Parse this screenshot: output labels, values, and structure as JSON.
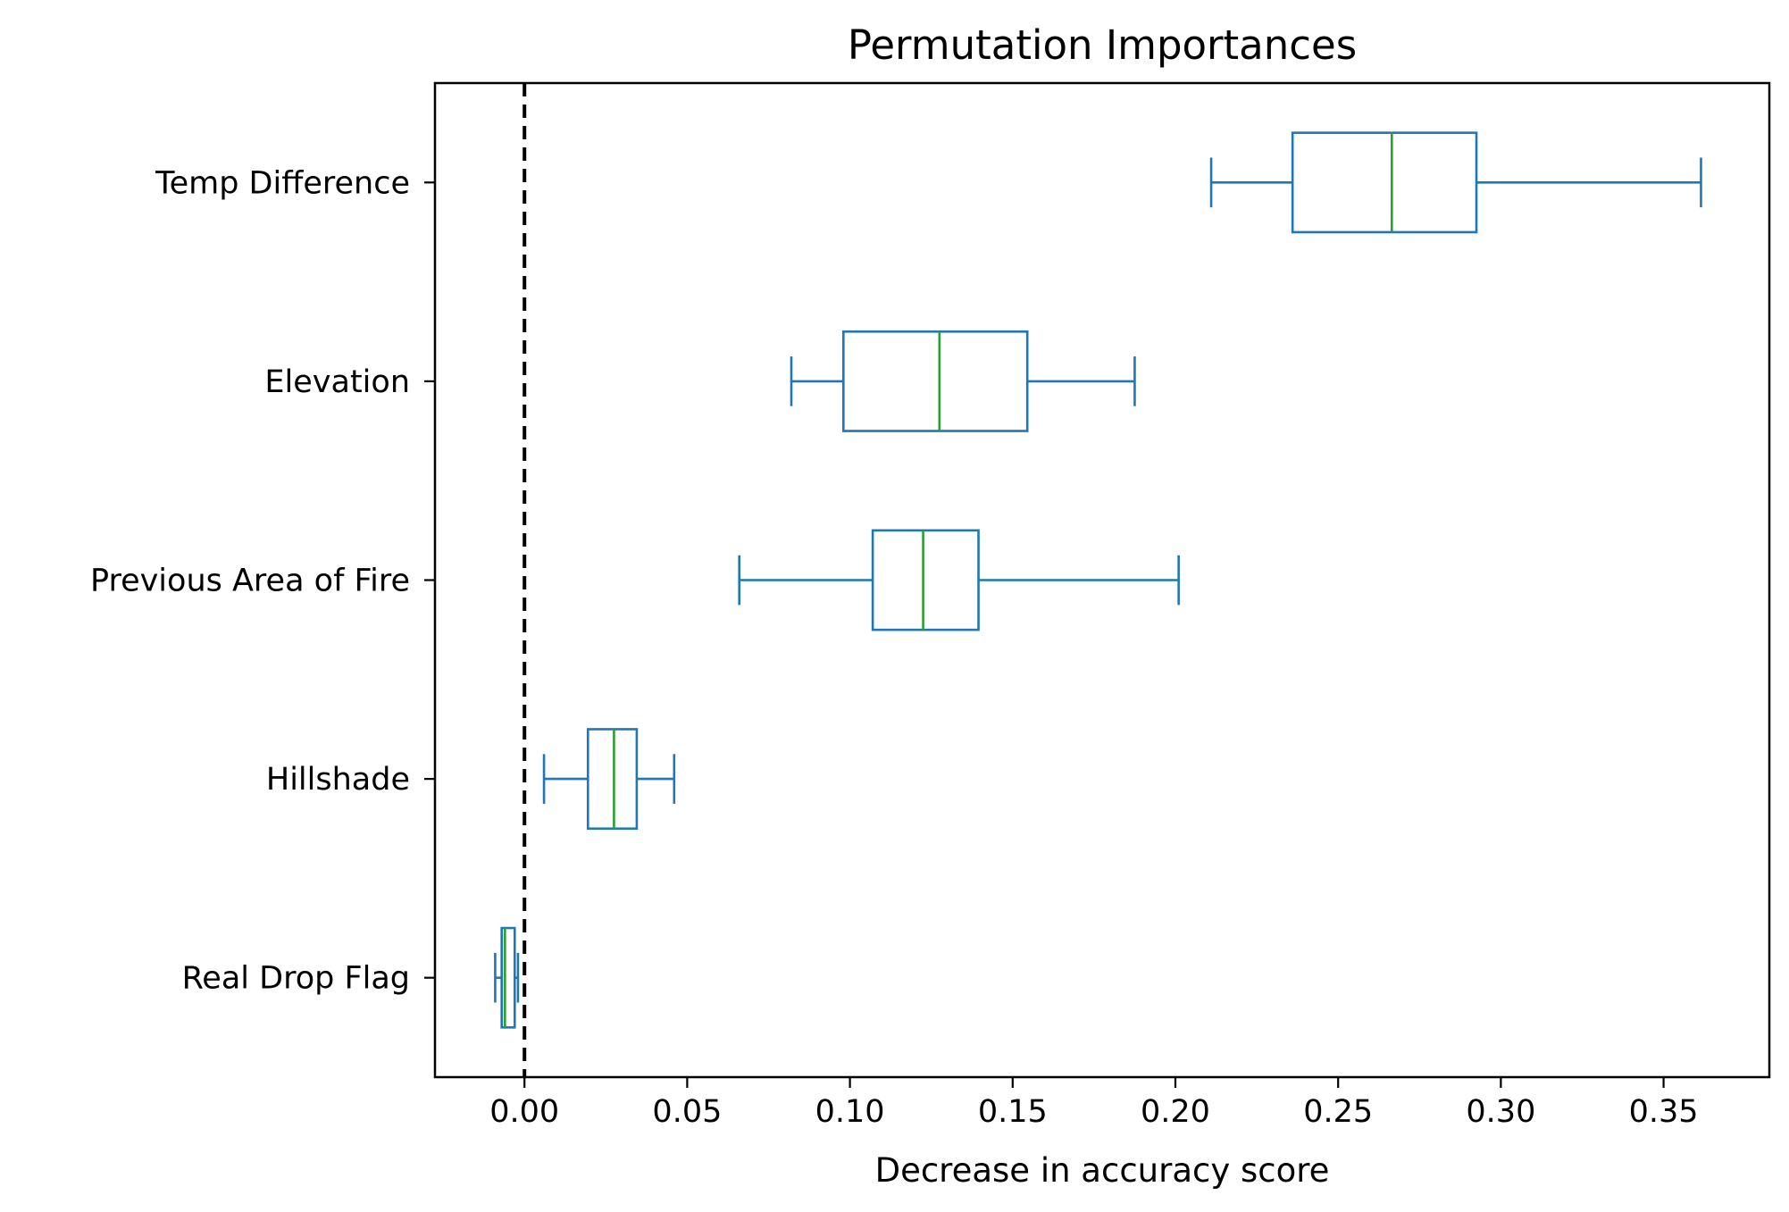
{
  "chart_data": {
    "type": "boxplot",
    "orientation": "horizontal",
    "title": "Permutation Importances",
    "xlabel": "Decrease in accuracy score",
    "ylabel": "",
    "xlim": [
      -0.0275,
      0.3825
    ],
    "xticks": [
      0.0,
      0.05,
      0.1,
      0.15,
      0.2,
      0.25,
      0.3,
      0.35
    ],
    "xtick_labels": [
      "0.00",
      "0.05",
      "0.10",
      "0.15",
      "0.20",
      "0.25",
      "0.30",
      "0.35"
    ],
    "reference_line": {
      "x": 0.0,
      "style": "dashed",
      "color": "#000000"
    },
    "grid": false,
    "colors": {
      "box": "#1f77b4",
      "median": "#2ca02c"
    },
    "categories": [
      "Temp Difference",
      "Elevation",
      "Previous Area of Fire",
      "Hillshade",
      "Real Drop Flag"
    ],
    "boxes": [
      {
        "label": "Temp Difference",
        "whisker_low": 0.211,
        "q1": 0.236,
        "median": 0.2665,
        "q3": 0.2925,
        "whisker_high": 0.3615
      },
      {
        "label": "Elevation",
        "whisker_low": 0.082,
        "q1": 0.098,
        "median": 0.1275,
        "q3": 0.1545,
        "whisker_high": 0.1875
      },
      {
        "label": "Previous Area of Fire",
        "whisker_low": 0.066,
        "q1": 0.107,
        "median": 0.1225,
        "q3": 0.1395,
        "whisker_high": 0.201
      },
      {
        "label": "Hillshade",
        "whisker_low": 0.006,
        "q1": 0.0195,
        "median": 0.0275,
        "q3": 0.0345,
        "whisker_high": 0.046
      },
      {
        "label": "Real Drop Flag",
        "whisker_low": -0.009,
        "q1": -0.007,
        "median": -0.006,
        "q3": -0.003,
        "whisker_high": -0.002
      }
    ]
  }
}
